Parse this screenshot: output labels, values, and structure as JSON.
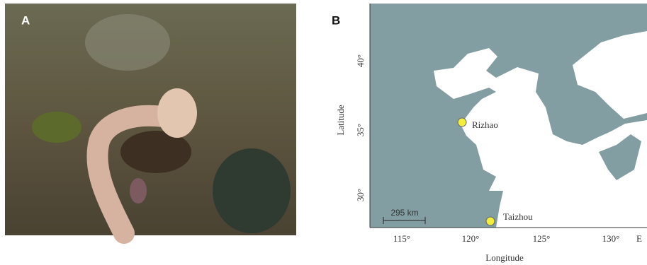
{
  "panels": [
    {
      "label": "A"
    },
    {
      "label": "B",
      "y_axis_label": "Latitude",
      "x_axis_label": "Longitude",
      "y_tick_labels": [
        "40°",
        "35°",
        "30°"
      ],
      "x_tick_labels": [
        "115°",
        "120°",
        "125°",
        "130°",
        "E"
      ],
      "sites": [
        "Rizhao",
        "Taizhou"
      ],
      "scale_bar": "295 km"
    }
  ]
}
